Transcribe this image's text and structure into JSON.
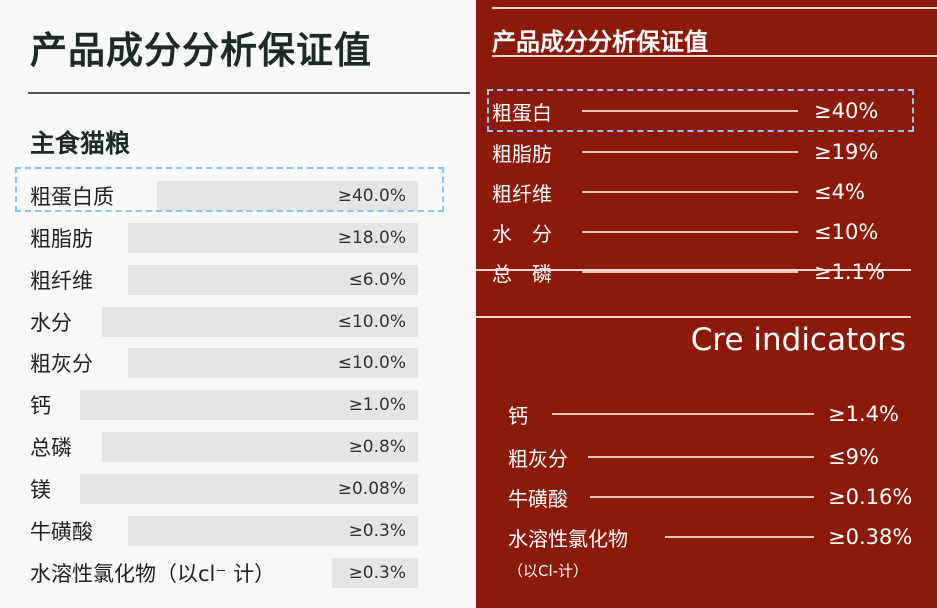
{
  "left": {
    "title": "产品成分分析保证值",
    "subtitle": "主食猫粮",
    "rows": [
      {
        "label": "粗蛋白质",
        "value": "≥40.0%"
      },
      {
        "label": "粗脂肪",
        "value": "≥18.0%"
      },
      {
        "label": "粗纤维",
        "value": "≤6.0%"
      },
      {
        "label": "水分",
        "value": "≤10.0%"
      },
      {
        "label": "粗灰分",
        "value": "≤10.0%"
      },
      {
        "label": "钙",
        "value": "≥1.0%"
      },
      {
        "label": "总磷",
        "value": "≥0.8%"
      },
      {
        "label": "镁",
        "value": "≥0.08%"
      },
      {
        "label": "牛磺酸",
        "value": "≥0.3%"
      },
      {
        "label": "水溶性氯化物（以cl⁻ 计）",
        "value": "≥0.3%"
      }
    ]
  },
  "right": {
    "title": "产品成分分析保证值",
    "rows": [
      {
        "label": "粗蛋白",
        "value": "≥40%"
      },
      {
        "label": "粗脂肪",
        "value": "≥19%"
      },
      {
        "label": "粗纤维",
        "value": "≤4%"
      },
      {
        "label": "水　分",
        "value": "≤10%"
      },
      {
        "label": "总　磷",
        "value": "≥1.1%"
      }
    ],
    "section_title": "Cre indicators",
    "rows2": [
      {
        "label": "钙",
        "value": "≥1.4%"
      },
      {
        "label": "粗灰分",
        "value": "≤9%"
      },
      {
        "label": "牛磺酸",
        "value": "≥0.16%"
      },
      {
        "label": "水溶性氯化物",
        "value": "≥0.38%"
      }
    ],
    "note": "（以Cl-计）"
  },
  "colors": {
    "left_bg": "#f7f8f8",
    "bar": "#e4e5e7",
    "right_bg": "#8c1a0a",
    "highlight": "#8ec5ee"
  }
}
